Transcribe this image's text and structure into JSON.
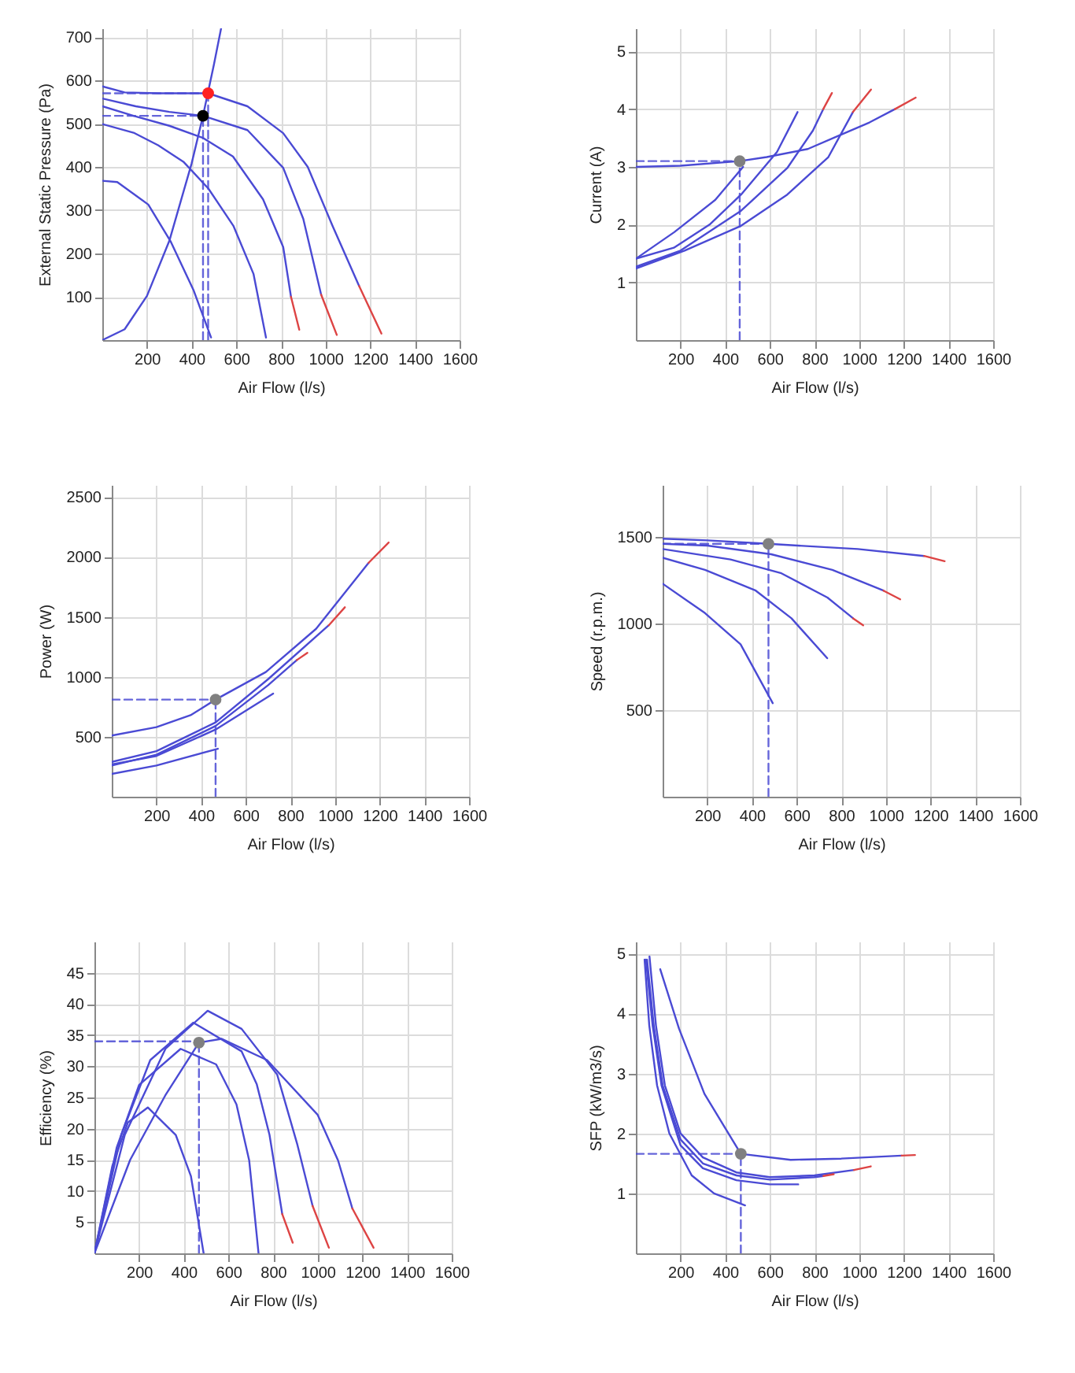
{
  "chart_data": [
    {
      "type": "line",
      "xlabel": "Air Flow (l/s)",
      "ylabel": "External Static Pressure (Pa)",
      "xlim": [
        0,
        1600
      ],
      "xticks": [
        200,
        400,
        600,
        800,
        1000,
        1200,
        1400,
        1600
      ],
      "ylim": [
        0,
        720
      ],
      "yticks": [
        100,
        200,
        300,
        400,
        500,
        600,
        700
      ],
      "grid": true,
      "series": [
        {
          "color": "#4a4ad4",
          "x": [
            0,
            100,
            250,
            474,
            650,
            810,
            920,
            1030,
            1150
          ],
          "values": [
            586,
            572,
            570,
            570,
            540,
            478,
            400,
            265,
            125
          ]
        },
        {
          "color": "#4a4ad4",
          "x": [
            0,
            150,
            300,
            451,
            650,
            810,
            900,
            980
          ],
          "values": [
            558,
            540,
            527,
            518,
            485,
            398,
            280,
            105
          ]
        },
        {
          "color": "#4a4ad4",
          "x": [
            0,
            140,
            300,
            451,
            585,
            720,
            810,
            845
          ],
          "values": [
            540,
            518,
            495,
            467,
            424,
            325,
            215,
            100
          ]
        },
        {
          "color": "#4a4ad4",
          "x": [
            0,
            140,
            250,
            363,
            475,
            587,
            677,
            733
          ],
          "values": [
            499,
            479,
            450,
            412,
            350,
            264,
            153,
            6
          ]
        },
        {
          "color": "#4a4ad4",
          "x": [
            0,
            67,
            206,
            307,
            408,
            487
          ],
          "values": [
            368,
            365,
            313,
            227,
            116,
            6
          ]
        },
        {
          "color": "#dd4444",
          "x": [
            1150,
            1200,
            1250
          ],
          "values": [
            125,
            70,
            15
          ]
        },
        {
          "color": "#dd4444",
          "x": [
            980,
            1050
          ],
          "values": [
            105,
            12
          ]
        },
        {
          "color": "#dd4444",
          "x": [
            845,
            882
          ],
          "values": [
            100,
            24
          ]
        },
        {
          "color": "#4a4ad4",
          "x": [
            0,
            100,
            200,
            300,
            400,
            451,
            500,
            532
          ],
          "values": [
            0,
            25,
            102,
            229,
            408,
            518,
            637,
            720
          ]
        },
        {
          "color": "#4a4ad4",
          "line_style": "dashed",
          "x": [
            0,
            474
          ],
          "values": [
            570,
            570
          ]
        },
        {
          "color": "#4a4ad4",
          "line_style": "dashed",
          "x": [
            474,
            474
          ],
          "values": [
            0,
            570
          ]
        },
        {
          "color": "#4a4ad4",
          "line_style": "dashed",
          "x": [
            0,
            451
          ],
          "values": [
            518,
            518
          ]
        },
        {
          "color": "#4a4ad4",
          "line_style": "dashed",
          "x": [
            451,
            451
          ],
          "values": [
            0,
            518
          ]
        },
        {
          "type": "scatter",
          "marker": "circle",
          "color": "#ff2020",
          "x": [
            474
          ],
          "values": [
            570
          ]
        },
        {
          "type": "scatter",
          "marker": "circle",
          "color": "#000000",
          "x": [
            451
          ],
          "values": [
            518
          ]
        }
      ]
    },
    {
      "type": "line",
      "xlabel": "Air Flow (l/s)",
      "ylabel": "Current (A)",
      "xlim": [
        0,
        1600
      ],
      "xticks": [
        200,
        400,
        600,
        800,
        1000,
        1200,
        1400,
        1600
      ],
      "ylim": [
        0,
        5.4
      ],
      "yticks": [
        1,
        2,
        3,
        4,
        5
      ],
      "grid": true,
      "series": [
        {
          "color": "#4a4ad4",
          "x": [
            0,
            200,
            465,
            586,
            770,
            908,
            1046,
            1160
          ],
          "values": [
            3.0,
            3.02,
            3.1,
            3.17,
            3.31,
            3.54,
            3.77,
            4.0
          ]
        },
        {
          "color": "#4a4ad4",
          "x": [
            0,
            218,
            471,
            678,
            862,
            972
          ],
          "values": [
            1.24,
            1.55,
            1.98,
            2.52,
            3.17,
            3.95
          ]
        },
        {
          "color": "#4a4ad4",
          "x": [
            0,
            200,
            471,
            678,
            793,
            839
          ],
          "values": [
            1.27,
            1.55,
            2.24,
            2.98,
            3.63,
            4.0
          ]
        },
        {
          "color": "#4a4ad4",
          "x": [
            0,
            170,
            330,
            471,
            632,
            724
          ],
          "values": [
            1.41,
            1.6,
            2.0,
            2.52,
            3.26,
            3.95
          ]
        },
        {
          "color": "#4a4ad4",
          "x": [
            0,
            172,
            356,
            480
          ],
          "values": [
            1.41,
            1.87,
            2.43,
            3.0
          ]
        },
        {
          "color": "#dd4444",
          "x": [
            1160,
            1253
          ],
          "values": [
            4.0,
            4.2
          ]
        },
        {
          "color": "#dd4444",
          "x": [
            972,
            1053
          ],
          "values": [
            3.95,
            4.34
          ]
        },
        {
          "color": "#dd4444",
          "x": [
            839,
            878
          ],
          "values": [
            4.0,
            4.28
          ]
        },
        {
          "color": "#4a4ad4",
          "line_style": "dashed",
          "x": [
            0,
            465
          ],
          "values": [
            3.1,
            3.1
          ]
        },
        {
          "color": "#4a4ad4",
          "line_style": "dashed",
          "x": [
            465,
            465
          ],
          "values": [
            0,
            3.1
          ]
        },
        {
          "type": "scatter",
          "marker": "circle",
          "color": "#808080",
          "x": [
            465
          ],
          "values": [
            3.1
          ]
        }
      ]
    },
    {
      "type": "line",
      "xlabel": "Air Flow (l/s)",
      "ylabel": "Power (W)",
      "xlim": [
        0,
        1600
      ],
      "xticks": [
        200,
        400,
        600,
        800,
        1000,
        1200,
        1400,
        1600
      ],
      "ylim": [
        0,
        2600
      ],
      "yticks": [
        500,
        1000,
        1500,
        2000,
        2500
      ],
      "grid": true,
      "series": [
        {
          "color": "#4a4ad4",
          "x": [
            0,
            200,
            353,
            465,
            690,
            915,
            1150
          ],
          "values": [
            510,
            580,
            680,
            810,
            1040,
            1400,
            1950
          ]
        },
        {
          "color": "#4a4ad4",
          "x": [
            0,
            200,
            465,
            700,
            972
          ],
          "values": [
            290,
            380,
            620,
            980,
            1430
          ]
        },
        {
          "color": "#4a4ad4",
          "x": [
            0,
            200,
            465,
            700,
            829
          ],
          "values": [
            260,
            350,
            590,
            930,
            1140
          ]
        },
        {
          "color": "#4a4ad4",
          "x": [
            0,
            200,
            465,
            723
          ],
          "values": [
            270,
            340,
            560,
            860
          ]
        },
        {
          "color": "#4a4ad4",
          "x": [
            0,
            200,
            475
          ],
          "values": [
            190,
            260,
            400
          ]
        },
        {
          "color": "#dd4444",
          "x": [
            1150,
            1240
          ],
          "values": [
            1950,
            2120
          ]
        },
        {
          "color": "#dd4444",
          "x": [
            972,
            1044
          ],
          "values": [
            1430,
            1580
          ]
        },
        {
          "color": "#dd4444",
          "x": [
            829,
            876
          ],
          "values": [
            1140,
            1200
          ]
        },
        {
          "color": "#4a4ad4",
          "line_style": "dashed",
          "x": [
            0,
            465
          ],
          "values": [
            810,
            810
          ]
        },
        {
          "color": "#4a4ad4",
          "line_style": "dashed",
          "x": [
            465,
            465
          ],
          "values": [
            0,
            810
          ]
        },
        {
          "type": "scatter",
          "marker": "circle",
          "color": "#808080",
          "x": [
            465
          ],
          "values": [
            810
          ]
        }
      ]
    },
    {
      "type": "line",
      "xlabel": "Air Flow (l/s)",
      "ylabel": "Speed (r.p.m.)",
      "xlim": [
        0,
        1600
      ],
      "xticks": [
        200,
        400,
        600,
        800,
        1000,
        1200,
        1400,
        1600
      ],
      "ylim": [
        0,
        1800
      ],
      "yticks": [
        500,
        1000,
        1500
      ],
      "grid": true,
      "series": [
        {
          "color": "#4a4ad4",
          "x": [
            0,
            200,
            474,
            874,
            1171
          ],
          "values": [
            1490,
            1480,
            1460,
            1430,
            1390
          ]
        },
        {
          "color": "#4a4ad4",
          "x": [
            0,
            200,
            486,
            760,
            989
          ],
          "values": [
            1460,
            1450,
            1400,
            1310,
            1190
          ]
        },
        {
          "color": "#4a4ad4",
          "x": [
            0,
            304,
            532,
            738,
            853
          ],
          "values": [
            1430,
            1370,
            1290,
            1150,
            1030
          ]
        },
        {
          "color": "#4a4ad4",
          "x": [
            0,
            190,
            417,
            577,
            737
          ],
          "values": [
            1380,
            1310,
            1190,
            1030,
            800
          ]
        },
        {
          "color": "#4a4ad4",
          "x": [
            0,
            190,
            349,
            493
          ],
          "values": [
            1230,
            1060,
            880,
            540
          ]
        },
        {
          "color": "#dd4444",
          "x": [
            1171,
            1263
          ],
          "values": [
            1390,
            1360
          ]
        },
        {
          "color": "#dd4444",
          "x": [
            989,
            1064
          ],
          "values": [
            1190,
            1140
          ]
        },
        {
          "color": "#dd4444",
          "x": [
            853,
            898
          ],
          "values": [
            1030,
            990
          ]
        },
        {
          "color": "#4a4ad4",
          "line_style": "dashed",
          "x": [
            0,
            474
          ],
          "values": [
            1460,
            1460
          ]
        },
        {
          "color": "#4a4ad4",
          "line_style": "dashed",
          "x": [
            474,
            474
          ],
          "values": [
            0,
            1460
          ]
        },
        {
          "type": "scatter",
          "marker": "circle",
          "color": "#808080",
          "x": [
            474
          ],
          "values": [
            1460
          ]
        }
      ]
    },
    {
      "type": "line",
      "xlabel": "Air Flow (l/s)",
      "ylabel": "Efficiency (%)",
      "xlim": [
        0,
        1600
      ],
      "xticks": [
        200,
        400,
        600,
        800,
        1000,
        1200,
        1400,
        1600
      ],
      "ylim": [
        0,
        50
      ],
      "yticks": [
        5,
        10,
        15,
        20,
        25,
        30,
        35,
        40,
        45
      ],
      "grid": true,
      "series": [
        {
          "color": "#4a4ad4",
          "x": [
            0,
            160,
            320,
            468,
            570,
            773,
            1000,
            1091,
            1155
          ],
          "values": [
            0,
            15,
            25.5,
            33.8,
            34.4,
            31,
            22.2,
            14.9,
            7.2
          ]
        },
        {
          "color": "#4a4ad4",
          "x": [
            0,
            136,
            318,
            507,
            659,
            818,
            909,
            977
          ],
          "values": [
            0,
            19,
            32.8,
            38.9,
            36,
            28.7,
            17.4,
            7.6
          ]
        },
        {
          "color": "#4a4ad4",
          "x": [
            0,
            120,
            250,
            443,
            659,
            727,
            784,
            841
          ],
          "values": [
            0,
            19,
            31,
            37,
            32.4,
            27.1,
            19,
            6.3
          ]
        },
        {
          "color": "#4a4ad4",
          "x": [
            0,
            100,
            200,
            386,
            545,
            636,
            693,
            735
          ],
          "values": [
            0,
            17,
            27,
            32.8,
            30.3,
            23.9,
            14.9,
            0
          ]
        },
        {
          "color": "#4a4ad4",
          "x": [
            0,
            80,
            150,
            239,
            364,
            432,
            489
          ],
          "values": [
            0,
            14,
            21,
            23.4,
            19,
            12.4,
            0
          ]
        },
        {
          "color": "#dd4444",
          "x": [
            1155,
            1250
          ],
          "values": [
            7.2,
            0.9
          ]
        },
        {
          "color": "#dd4444",
          "x": [
            977,
            1050
          ],
          "values": [
            7.6,
            0.9
          ]
        },
        {
          "color": "#dd4444",
          "x": [
            841,
            888
          ],
          "values": [
            6.3,
            1.7
          ]
        },
        {
          "color": "#4a4ad4",
          "line_style": "dashed",
          "x": [
            0,
            468
          ],
          "values": [
            34,
            34
          ]
        },
        {
          "color": "#4a4ad4",
          "line_style": "dashed",
          "x": [
            468,
            468
          ],
          "values": [
            0,
            34
          ]
        },
        {
          "type": "scatter",
          "marker": "circle",
          "color": "#808080",
          "x": [
            468
          ],
          "values": [
            33.8
          ]
        }
      ]
    },
    {
      "type": "line",
      "xlabel": "Air Flow (l/s)",
      "ylabel": "SFP (kW/m3/s)",
      "xlim": [
        0,
        1600
      ],
      "xticks": [
        200,
        400,
        600,
        800,
        1000,
        1200,
        1400,
        1600
      ],
      "ylim": [
        0,
        5.2
      ],
      "yticks": [
        1,
        2,
        3,
        4,
        5
      ],
      "grid": true,
      "series": [
        {
          "color": "#4a4ad4",
          "x": [
            109,
            193,
            307,
            470,
            693,
            920,
            1190
          ],
          "values": [
            4.74,
            3.75,
            2.66,
            1.66,
            1.56,
            1.58,
            1.63
          ]
        },
        {
          "color": "#4a4ad4",
          "x": [
            61,
            90,
            130,
            200,
            300,
            450,
            600,
            800,
            977
          ],
          "values": [
            4.95,
            3.8,
            2.8,
            2.0,
            1.6,
            1.35,
            1.27,
            1.3,
            1.39
          ]
        },
        {
          "color": "#4a4ad4",
          "x": [
            50,
            80,
            120,
            200,
            300,
            450,
            600,
            800,
            840
          ],
          "values": [
            4.9,
            3.8,
            2.8,
            1.9,
            1.5,
            1.3,
            1.23,
            1.27,
            1.29
          ]
        },
        {
          "color": "#4a4ad4",
          "x": [
            45,
            75,
            115,
            200,
            300,
            450,
            600,
            727
          ],
          "values": [
            4.9,
            3.8,
            2.8,
            1.8,
            1.42,
            1.22,
            1.15,
            1.15
          ]
        },
        {
          "color": "#4a4ad4",
          "x": [
            39,
            60,
            95,
            150,
            250,
            350,
            489
          ],
          "values": [
            4.9,
            3.8,
            2.8,
            2.0,
            1.3,
            1.0,
            0.8
          ]
        },
        {
          "color": "#dd4444",
          "x": [
            1190,
            1250
          ],
          "values": [
            1.63,
            1.64
          ]
        },
        {
          "color": "#dd4444",
          "x": [
            977,
            1052
          ],
          "values": [
            1.39,
            1.45
          ]
        },
        {
          "color": "#dd4444",
          "x": [
            840,
            886
          ],
          "values": [
            1.29,
            1.32
          ]
        },
        {
          "color": "#4a4ad4",
          "line_style": "dashed",
          "x": [
            0,
            470
          ],
          "values": [
            1.66,
            1.66
          ]
        },
        {
          "color": "#4a4ad4",
          "line_style": "dashed",
          "x": [
            470,
            470
          ],
          "values": [
            0,
            1.66
          ]
        },
        {
          "type": "scatter",
          "marker": "circle",
          "color": "#808080",
          "x": [
            470
          ],
          "values": [
            1.66
          ]
        }
      ]
    }
  ]
}
